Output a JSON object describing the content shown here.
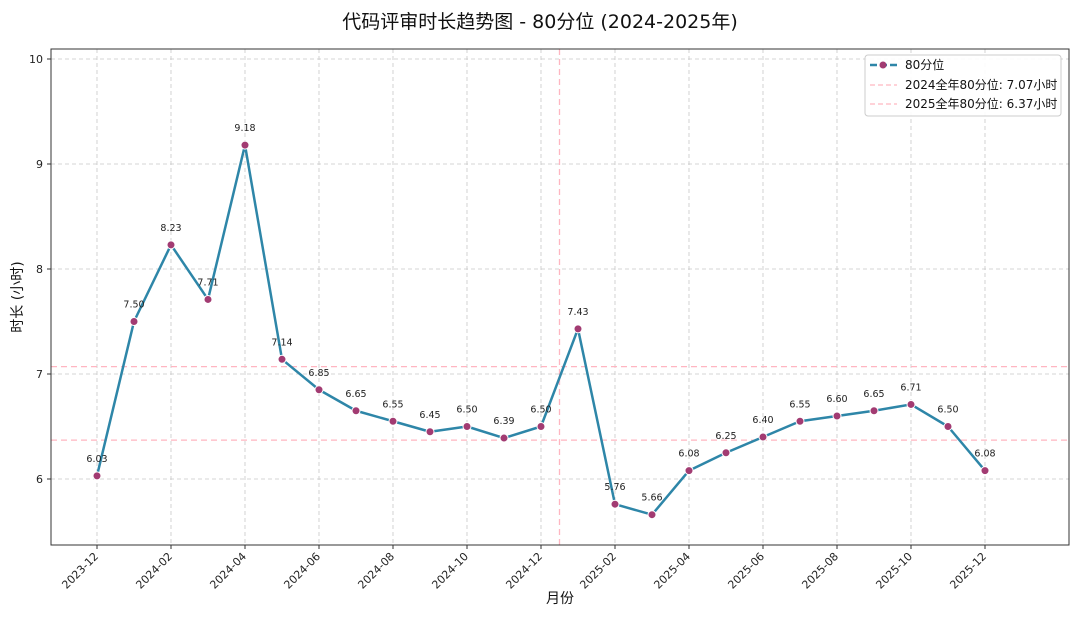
{
  "chart_data": {
    "type": "line",
    "title": "代码评审时长趋势图 - 80分位 (2024-2025年)",
    "xlabel": "月份",
    "ylabel": "时长 (小时)",
    "ylim": [
      5.4,
      10.1
    ],
    "yticks": [
      6,
      7,
      8,
      9,
      10
    ],
    "grid": true,
    "legend_position": "upper right",
    "x": [
      "2023-12",
      "2024-01",
      "2024-02",
      "2024-03",
      "2024-04",
      "2024-05",
      "2024-06",
      "2024-07",
      "2024-08",
      "2024-09",
      "2024-10",
      "2024-11",
      "2024-12",
      "2025-01",
      "2025-02",
      "2025-03",
      "2025-04",
      "2025-05",
      "2025-06",
      "2025-07",
      "2025-08",
      "2025-09",
      "2025-10",
      "2025-11",
      "2025-12"
    ],
    "xtick_labels": [
      "2023-12",
      "2024-02",
      "2024-04",
      "2024-06",
      "2024-08",
      "2024-10",
      "2024-12",
      "2025-02",
      "2025-04",
      "2025-06",
      "2025-08",
      "2025-10",
      "2025-12"
    ],
    "series": [
      {
        "name": "80分位",
        "values": [
          6.03,
          7.5,
          8.23,
          7.71,
          9.18,
          7.14,
          6.85,
          6.65,
          6.55,
          6.45,
          6.5,
          6.39,
          6.5,
          7.43,
          5.76,
          5.66,
          6.08,
          6.25,
          6.4,
          6.55,
          6.6,
          6.65,
          6.71,
          6.5,
          6.08
        ],
        "labels": [
          "6.03",
          "7.50",
          "8.23",
          "7.71",
          "9.18",
          "7.14",
          "6.85",
          "6.65",
          "6.55",
          "6.45",
          "6.50",
          "6.39",
          "6.50",
          "7.43",
          "5.76",
          "5.66",
          "6.08",
          "6.25",
          "6.40",
          "6.55",
          "6.60",
          "6.65",
          "6.71",
          "6.50",
          "6.08"
        ],
        "line_color": "#2e86a8",
        "marker_color": "#a23b72"
      }
    ],
    "reference_lines": [
      {
        "orientation": "horizontal",
        "value": 7.07,
        "label": "2024全年80分位: 7.07小时",
        "color": "#ffb6c1"
      },
      {
        "orientation": "horizontal",
        "value": 6.37,
        "label": "2025全年80分位: 6.37小时",
        "color": "#ffb6c1"
      },
      {
        "orientation": "vertical",
        "position": "2024-12/2025-01 boundary",
        "color": "#ffb6c1"
      }
    ]
  },
  "legend": {
    "items": [
      {
        "label": "80分位"
      },
      {
        "label": "2024全年80分位: 7.07小时"
      },
      {
        "label": "2025全年80分位: 6.37小时"
      }
    ]
  }
}
